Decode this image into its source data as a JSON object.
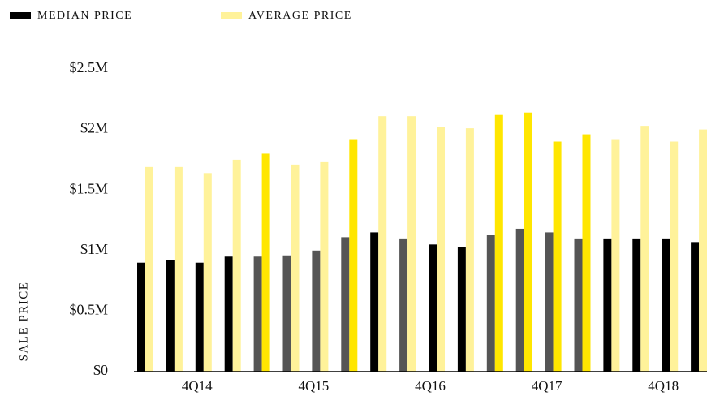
{
  "chart_data": {
    "type": "bar",
    "y_label": "SALE PRICE",
    "categories": [
      null,
      null,
      "4Q14",
      null,
      null,
      null,
      "4Q15",
      null,
      null,
      null,
      "4Q16",
      null,
      null,
      null,
      "4Q17",
      null,
      null,
      null,
      "4Q18",
      null
    ],
    "series": [
      {
        "name": "MEDIAN PRICE",
        "color": "#000000",
        "colors": [
          "#000000",
          "#000000",
          "#000000",
          "#000000",
          "#555555",
          "#555555",
          "#555555",
          "#555555",
          "#000000",
          "#555555",
          "#000000",
          "#000000",
          "#555555",
          "#555555",
          "#555555",
          "#555555",
          "#000000",
          "#000000",
          "#000000",
          "#000000"
        ],
        "values": [
          900000,
          920000,
          900000,
          950000,
          950000,
          960000,
          1000000,
          1110000,
          1150000,
          1100000,
          1050000,
          1030000,
          1130000,
          1180000,
          1150000,
          1100000,
          1100000,
          1100000,
          1100000,
          1070000
        ]
      },
      {
        "name": "AVERAGE PRICE",
        "color": "#fff29a",
        "colors": [
          "#fff29a",
          "#fff29a",
          "#fff29a",
          "#fff29a",
          "#ffe600",
          "#fff29a",
          "#fff29a",
          "#ffe600",
          "#fff29a",
          "#fff29a",
          "#fff29a",
          "#fff29a",
          "#ffe600",
          "#ffe600",
          "#ffe600",
          "#ffe600",
          "#fff29a",
          "#fff29a",
          "#fff29a",
          "#fff29a"
        ],
        "values": [
          1690000,
          1690000,
          1640000,
          1750000,
          1800000,
          1710000,
          1730000,
          1920000,
          2110000,
          2110000,
          2020000,
          2010000,
          2120000,
          2140000,
          1900000,
          1960000,
          1920000,
          2030000,
          1900000,
          2000000
        ]
      }
    ],
    "ylim": [
      0,
      2500000
    ],
    "yticks": [
      {
        "value": 0,
        "label": "$0"
      },
      {
        "value": 500000,
        "label": "$0.5M"
      },
      {
        "value": 1000000,
        "label": "$1M"
      },
      {
        "value": 1500000,
        "label": "$1.5M"
      },
      {
        "value": 2000000,
        "label": "$2M"
      },
      {
        "value": 2500000,
        "label": "$2.5M"
      }
    ],
    "legend": "top-left"
  }
}
